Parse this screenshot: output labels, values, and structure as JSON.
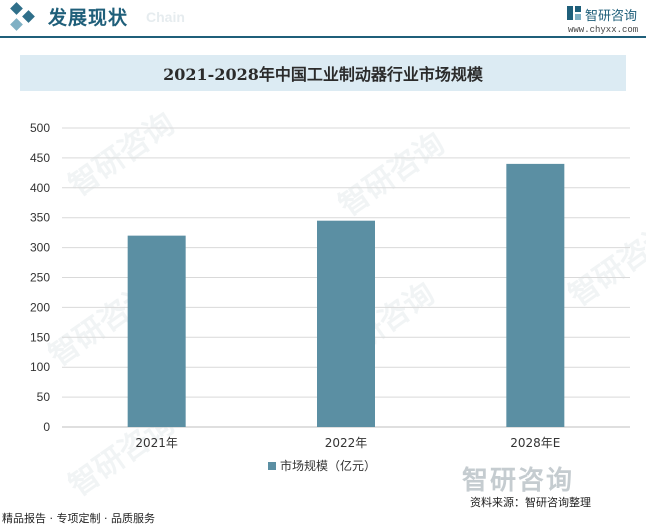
{
  "header": {
    "title": "发展现状",
    "subtitle": "Chain",
    "brand_name": "智研咨询",
    "brand_url": "www.chyxx.com"
  },
  "footer": {
    "left_text": "精品报告 · 专项定制 · 品质服务",
    "source": "资料来源：智研咨询整理"
  },
  "watermark": {
    "text": "智研咨询",
    "big_text": "智研咨询"
  },
  "colors": {
    "bar": "#5b8fa3",
    "accent": "#1f5f7a",
    "title_bg": "#dcebf3"
  },
  "chart_data": {
    "type": "bar",
    "title": "2021-2028年中国工业制动器行业市场规模",
    "categories": [
      "2021年",
      "2022年",
      "2028年E"
    ],
    "series": [
      {
        "name": "市场规模（亿元）",
        "values": [
          320,
          345,
          440
        ]
      }
    ],
    "ylim": [
      0,
      500
    ],
    "yticks": [
      0,
      50,
      100,
      150,
      200,
      250,
      300,
      350,
      400,
      450,
      500
    ],
    "grid": true,
    "legend": "bottom"
  }
}
